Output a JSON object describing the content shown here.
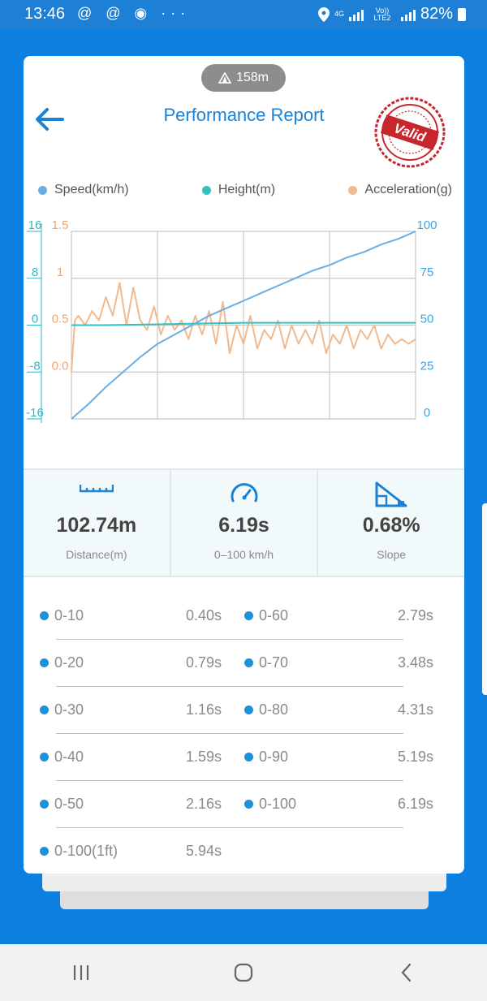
{
  "status_bar": {
    "time": "13:46",
    "left_icons": "@ @ ◉ ···",
    "net_label_top": "4G",
    "net_label_bottom": "Vo)) LTE2",
    "battery": "82%"
  },
  "header": {
    "altitude": "158m",
    "title": "Performance Report",
    "stamp_text": "Valid"
  },
  "legend": [
    {
      "label": "Speed(km/h)",
      "color": "#6aaee6"
    },
    {
      "label": "Height(m)",
      "color": "#33c0c0"
    },
    {
      "label": "Acceleration(g)",
      "color": "#f2b98d"
    }
  ],
  "chart_data": {
    "type": "line",
    "left_axis_height": {
      "ticks": [
        "16",
        "8",
        "0",
        "-8",
        "-16"
      ],
      "color": "#33b5c6"
    },
    "left_axis_acceleration": {
      "ticks": [
        "1.5",
        "1",
        "0.5",
        "0.0"
      ],
      "color": "#f2a36b"
    },
    "right_axis_speed": {
      "ticks": [
        "100",
        "75",
        "50",
        "25",
        "0"
      ],
      "color": "#3aa5e6"
    },
    "speed_ylim": [
      0,
      100
    ],
    "height_ylim": [
      -16,
      16
    ],
    "acceleration_ylim": [
      -0.5,
      1.5
    ],
    "series": [
      {
        "name": "Speed(km/h)",
        "x": [
          0,
          0.05,
          0.1,
          0.15,
          0.2,
          0.25,
          0.3,
          0.35,
          0.4,
          0.45,
          0.5,
          0.55,
          0.6,
          0.65,
          0.7,
          0.75,
          0.8,
          0.85,
          0.9,
          0.95,
          1.0
        ],
        "values": [
          0,
          8,
          17,
          25,
          33,
          40,
          45,
          50,
          55,
          59,
          63,
          67,
          71,
          75,
          79,
          82,
          86,
          89,
          93,
          96,
          100
        ]
      },
      {
        "name": "Height(m)",
        "x": [
          0,
          0.01,
          0.1,
          0.3,
          0.5,
          0.7,
          0.9,
          1.0
        ],
        "values": [
          0,
          0,
          0,
          0.2,
          0.4,
          0.4,
          0.4,
          0.4
        ]
      },
      {
        "name": "Acceleration(g)",
        "x": [
          0,
          0.01,
          0.02,
          0.04,
          0.06,
          0.08,
          0.1,
          0.12,
          0.14,
          0.16,
          0.18,
          0.2,
          0.22,
          0.24,
          0.26,
          0.28,
          0.3,
          0.32,
          0.34,
          0.36,
          0.38,
          0.4,
          0.42,
          0.44,
          0.46,
          0.48,
          0.5,
          0.52,
          0.54,
          0.56,
          0.58,
          0.6,
          0.62,
          0.64,
          0.66,
          0.68,
          0.7,
          0.72,
          0.74,
          0.76,
          0.78,
          0.8,
          0.82,
          0.84,
          0.86,
          0.88,
          0.9,
          0.92,
          0.94,
          0.96,
          0.98,
          1.0
        ],
        "values": [
          0.0,
          0.55,
          0.6,
          0.5,
          0.65,
          0.55,
          0.8,
          0.6,
          0.95,
          0.5,
          0.9,
          0.55,
          0.45,
          0.7,
          0.4,
          0.6,
          0.45,
          0.55,
          0.35,
          0.6,
          0.4,
          0.65,
          0.3,
          0.75,
          0.2,
          0.5,
          0.3,
          0.6,
          0.25,
          0.45,
          0.35,
          0.55,
          0.25,
          0.5,
          0.3,
          0.45,
          0.3,
          0.55,
          0.2,
          0.4,
          0.3,
          0.5,
          0.25,
          0.45,
          0.35,
          0.5,
          0.25,
          0.4,
          0.3,
          0.35,
          0.3,
          0.35
        ]
      }
    ]
  },
  "stats": [
    {
      "value": "102.74m",
      "label": "Distance(m)",
      "icon": "ruler-icon"
    },
    {
      "value": "6.19s",
      "label": "0–100 km/h",
      "icon": "speedometer-icon"
    },
    {
      "value": "0.68%",
      "label": "Slope",
      "icon": "slope-icon"
    }
  ],
  "splits": [
    {
      "left_label": "0-10",
      "left_value": "0.40s",
      "right_label": "0-60",
      "right_value": "2.79s"
    },
    {
      "left_label": "0-20",
      "left_value": "0.79s",
      "right_label": "0-70",
      "right_value": "3.48s"
    },
    {
      "left_label": "0-30",
      "left_value": "1.16s",
      "right_label": "0-80",
      "right_value": "4.31s"
    },
    {
      "left_label": "0-40",
      "left_value": "1.59s",
      "right_label": "0-90",
      "right_value": "5.19s"
    },
    {
      "left_label": "0-50",
      "left_value": "2.16s",
      "right_label": "0-100",
      "right_value": "6.19s"
    },
    {
      "left_label": "0-100(1ft)",
      "left_value": "5.94s"
    }
  ],
  "nav": [
    "recent-apps",
    "home",
    "back"
  ]
}
